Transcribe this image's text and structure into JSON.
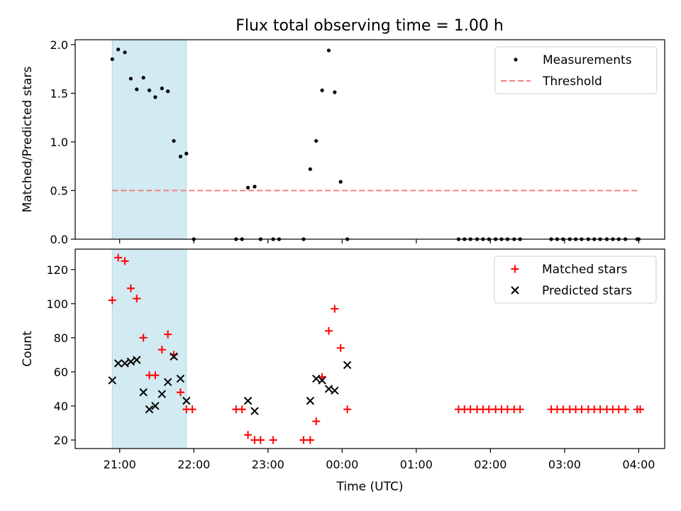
{
  "title": "Flux total observing time = 1.00 h",
  "chart_data": [
    {
      "type": "scatter",
      "ylabel": "Matched/Predicted stars",
      "xlim_hours": [
        20.4,
        28.35
      ],
      "ylim": [
        0,
        2.05
      ],
      "yticks": [
        0.0,
        0.5,
        1.0,
        1.5,
        2.0
      ],
      "ytick_labels": [
        "0.0",
        "0.5",
        "1.0",
        "1.5",
        "2.0"
      ],
      "shaded_region_hours": [
        20.9,
        21.9
      ],
      "shade_color": "#add8e6",
      "legend": {
        "placement": "upper-right",
        "entries": [
          "Measurements",
          "Threshold"
        ]
      },
      "threshold": {
        "name": "Threshold",
        "value": 0.5,
        "x_from": 20.9,
        "x_to": 28.0,
        "color": "#f08080",
        "style": "dashed"
      },
      "series": [
        {
          "name": "Measurements",
          "color": "#000000",
          "marker": "dot",
          "x": [
            20.9,
            20.98,
            21.07,
            21.15,
            21.23,
            21.32,
            21.4,
            21.48,
            21.57,
            21.65,
            21.73,
            21.82,
            21.9,
            22.0,
            22.57,
            22.65,
            22.73,
            22.82,
            22.9,
            23.07,
            23.15,
            23.48,
            23.57,
            23.65,
            23.73,
            23.82,
            23.9,
            23.98,
            24.07,
            25.57,
            25.65,
            25.73,
            25.82,
            25.9,
            25.98,
            26.07,
            26.15,
            26.23,
            26.32,
            26.4,
            26.82,
            26.9,
            26.98,
            27.07,
            27.15,
            27.23,
            27.32,
            27.4,
            27.48,
            27.57,
            27.65,
            27.73,
            27.82,
            27.98,
            28.0
          ],
          "y": [
            1.85,
            1.95,
            1.92,
            1.65,
            1.54,
            1.66,
            1.53,
            1.46,
            1.55,
            1.52,
            1.01,
            0.85,
            0.88,
            0.0,
            0.0,
            0.0,
            0.53,
            0.54,
            0.0,
            0.0,
            0.0,
            0.0,
            0.72,
            1.01,
            1.53,
            1.94,
            1.51,
            0.59,
            0.0,
            0.0,
            0.0,
            0.0,
            0.0,
            0.0,
            0.0,
            0.0,
            0.0,
            0.0,
            0.0,
            0.0,
            0.0,
            0.0,
            0.0,
            0.0,
            0.0,
            0.0,
            0.0,
            0.0,
            0.0,
            0.0,
            0.0,
            0.0,
            0.0,
            0.0,
            0.0
          ]
        }
      ]
    },
    {
      "type": "scatter",
      "xlabel": "Time (UTC)",
      "ylabel": "Count",
      "xlim_hours": [
        20.4,
        28.35
      ],
      "xticks_hours": [
        21,
        22,
        23,
        24,
        25,
        26,
        27,
        28
      ],
      "xtick_labels": [
        "21:00",
        "22:00",
        "23:00",
        "00:00",
        "01:00",
        "02:00",
        "03:00",
        "04:00"
      ],
      "ylim": [
        15,
        132
      ],
      "yticks": [
        20,
        40,
        60,
        80,
        100,
        120
      ],
      "ytick_labels": [
        "20",
        "40",
        "60",
        "80",
        "100",
        "120"
      ],
      "shaded_region_hours": [
        20.9,
        21.9
      ],
      "shade_color": "#add8e6",
      "legend": {
        "placement": "upper-right",
        "entries": [
          "Matched stars",
          "Predicted stars"
        ]
      },
      "series": [
        {
          "name": "Matched stars",
          "color": "#ff0000",
          "marker": "plus",
          "x": [
            20.9,
            20.98,
            21.07,
            21.15,
            21.23,
            21.32,
            21.4,
            21.48,
            21.57,
            21.65,
            21.73,
            21.82,
            21.9,
            21.98,
            22.57,
            22.65,
            22.73,
            22.82,
            22.9,
            23.07,
            23.48,
            23.57,
            23.65,
            23.73,
            23.82,
            23.9,
            23.98,
            24.07,
            25.57,
            25.65,
            25.73,
            25.82,
            25.9,
            25.98,
            26.07,
            26.15,
            26.23,
            26.32,
            26.4,
            26.82,
            26.9,
            26.98,
            27.07,
            27.15,
            27.23,
            27.32,
            27.4,
            27.48,
            27.57,
            27.65,
            27.73,
            27.82,
            27.98,
            28.02
          ],
          "y": [
            102,
            127,
            125,
            109,
            103,
            80,
            58,
            58,
            73,
            82,
            70,
            48,
            38,
            38,
            38,
            38,
            23,
            20,
            20,
            20,
            20,
            20,
            31,
            57,
            84,
            97,
            74,
            38,
            38,
            38,
            38,
            38,
            38,
            38,
            38,
            38,
            38,
            38,
            38,
            38,
            38,
            38,
            38,
            38,
            38,
            38,
            38,
            38,
            38,
            38,
            38,
            38,
            38,
            38
          ]
        },
        {
          "name": "Predicted stars",
          "color": "#000000",
          "marker": "x",
          "x": [
            20.9,
            20.98,
            21.07,
            21.15,
            21.23,
            21.32,
            21.4,
            21.48,
            21.57,
            21.65,
            21.73,
            21.82,
            21.9,
            22.73,
            22.82,
            23.57,
            23.65,
            23.73,
            23.82,
            23.9,
            24.07
          ],
          "y": [
            55,
            65,
            65,
            66,
            67,
            48,
            38,
            40,
            47,
            54,
            69,
            56,
            43,
            43,
            37,
            43,
            56,
            55,
            50,
            49,
            64
          ]
        }
      ]
    }
  ]
}
